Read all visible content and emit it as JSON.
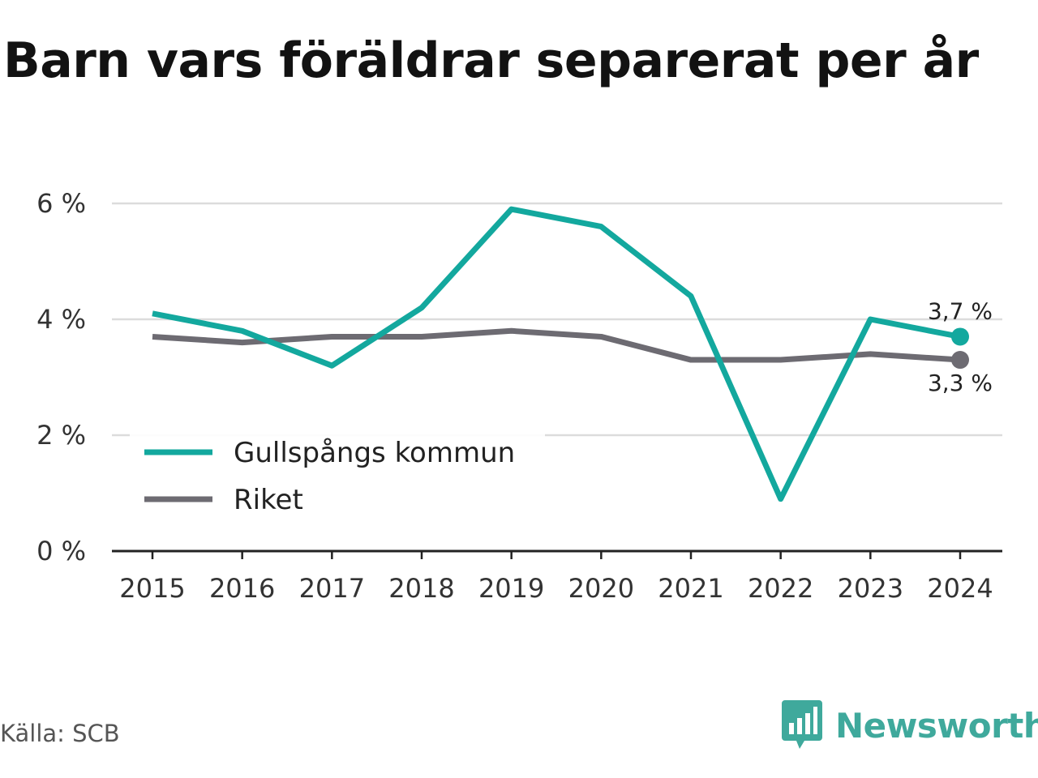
{
  "title": "Barn vars föräldrar separerat per år",
  "source": "Källa: SCB",
  "brand": {
    "name": "Newsworthy",
    "icon": "newsworthy-logo-icon",
    "color": "#3fa99c"
  },
  "chart_data": {
    "type": "line",
    "categories": [
      "2015",
      "2016",
      "2017",
      "2018",
      "2019",
      "2020",
      "2021",
      "2022",
      "2023",
      "2024"
    ],
    "series": [
      {
        "name": "Gullspångs kommun",
        "color": "#13a89e",
        "values": [
          4.1,
          3.8,
          3.2,
          4.2,
          5.9,
          5.6,
          4.4,
          0.9,
          4.0,
          3.7
        ]
      },
      {
        "name": "Riket",
        "color": "#6d6b72",
        "values": [
          3.7,
          3.6,
          3.7,
          3.7,
          3.8,
          3.7,
          3.3,
          3.3,
          3.4,
          3.3
        ]
      }
    ],
    "end_labels": [
      "3,7 %",
      "3,3 %"
    ],
    "yticks": [
      0,
      2,
      4,
      6
    ],
    "ytick_labels": [
      "0 %",
      "2 %",
      "4 %",
      "6 %"
    ],
    "ylim": [
      0,
      6
    ],
    "grid": true,
    "legend_position": "bottom-left"
  }
}
